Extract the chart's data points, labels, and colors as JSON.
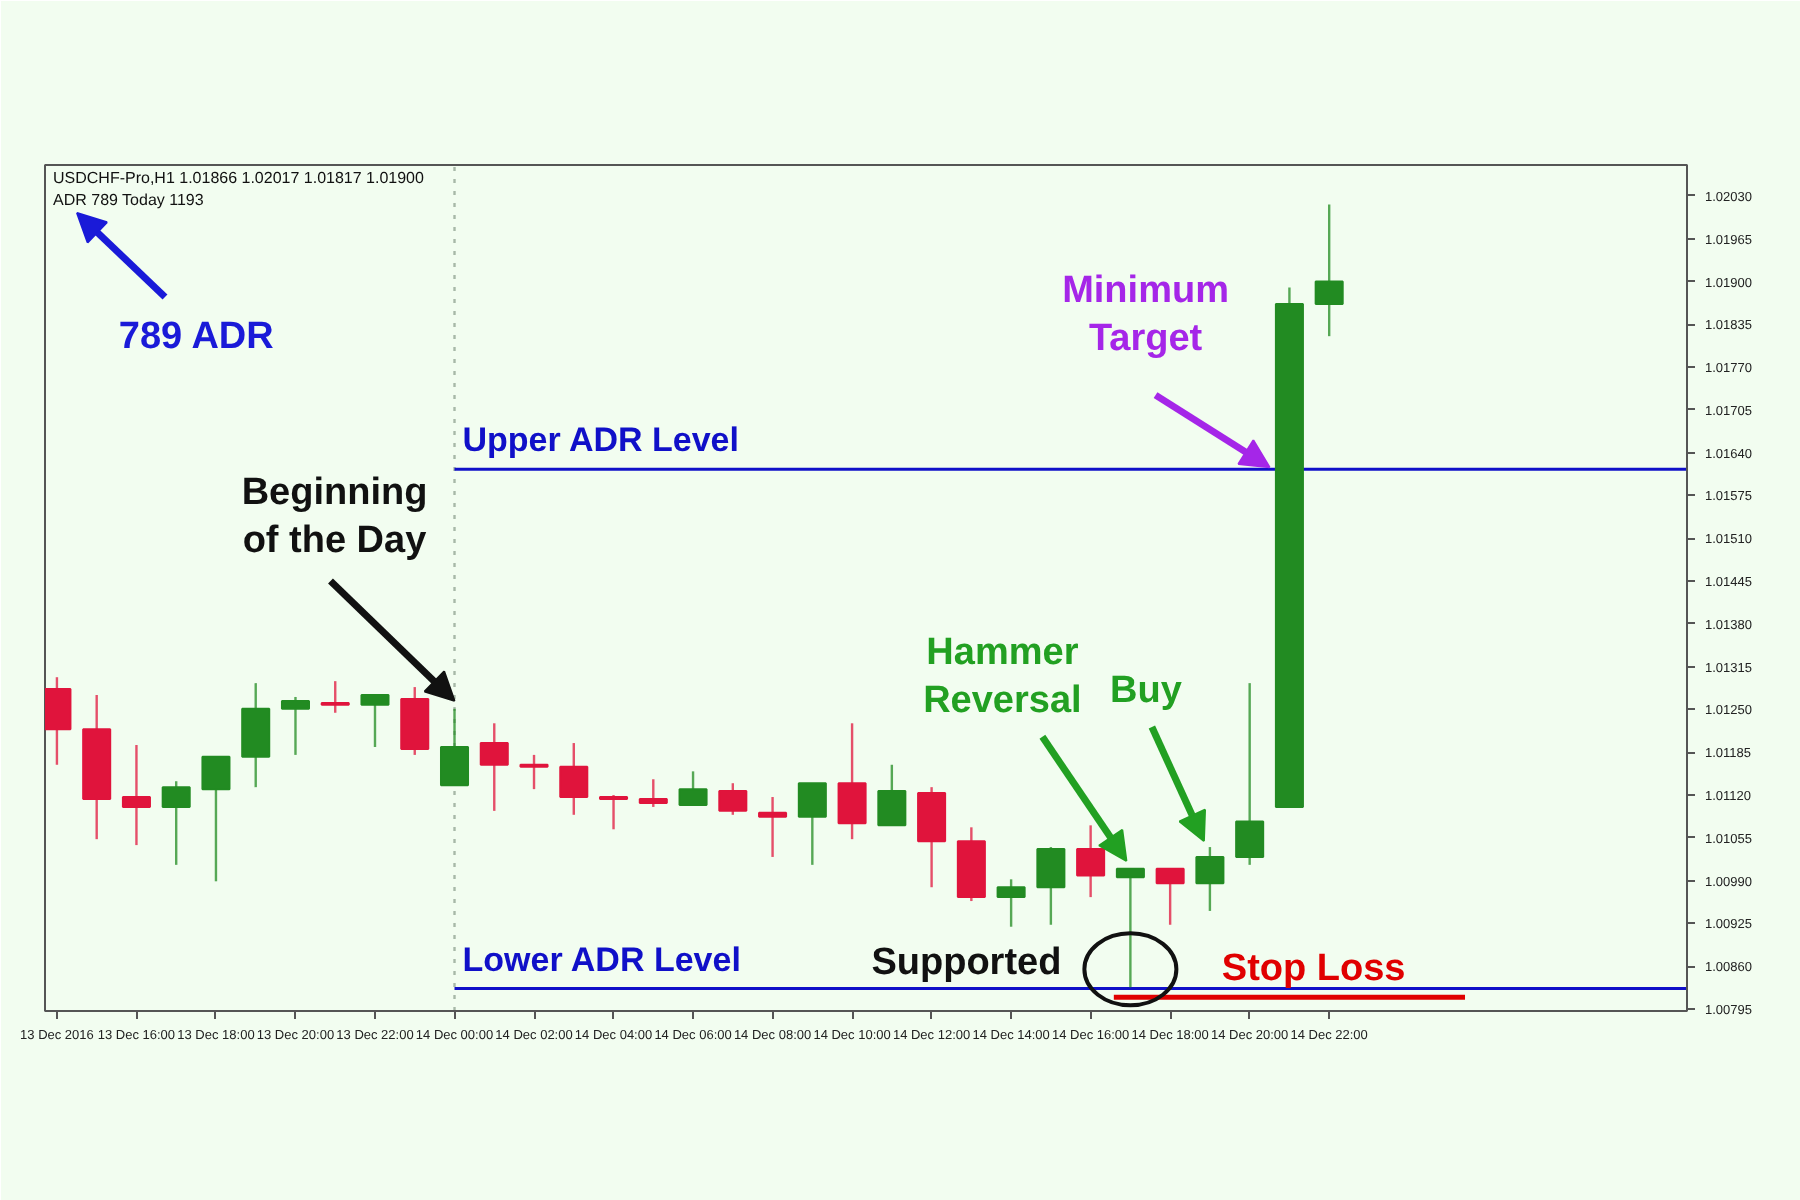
{
  "chart_data": {
    "type": "candlestick",
    "title": "USDCHF-Pro,H1  1.01866 1.02017 1.01817 1.01900",
    "subtitle": "ADR 789  Today 1193",
    "x": [
      "2016-12-13T14:00",
      "2016-12-13T15:00",
      "2016-12-13T16:00",
      "2016-12-13T17:00",
      "2016-12-13T18:00",
      "2016-12-13T19:00",
      "2016-12-13T20:00",
      "2016-12-13T21:00",
      "2016-12-13T22:00",
      "2016-12-13T23:00",
      "2016-12-14T00:00",
      "2016-12-14T01:00",
      "2016-12-14T02:00",
      "2016-12-14T03:00",
      "2016-12-14T04:00",
      "2016-12-14T05:00",
      "2016-12-14T06:00",
      "2016-12-14T07:00",
      "2016-12-14T08:00",
      "2016-12-14T09:00",
      "2016-12-14T10:00",
      "2016-12-14T11:00",
      "2016-12-14T12:00",
      "2016-12-14T13:00",
      "2016-12-14T14:00",
      "2016-12-14T15:00",
      "2016-12-14T16:00",
      "2016-12-14T17:00",
      "2016-12-14T18:00",
      "2016-12-14T19:00",
      "2016-12-14T20:00",
      "2016-12-14T21:00",
      "2016-12-14T22:00"
    ],
    "ohlc": [
      [
        1.01281,
        1.01299,
        1.01166,
        1.0122
      ],
      [
        1.0122,
        1.01272,
        1.01053,
        1.01114
      ],
      [
        1.01117,
        1.01196,
        1.01044,
        1.01102
      ],
      [
        1.01102,
        1.01141,
        1.01014,
        1.01132
      ],
      [
        1.01129,
        1.01178,
        1.00989,
        1.01178
      ],
      [
        1.01178,
        1.0129,
        1.01132,
        1.01251
      ],
      [
        1.01251,
        1.01269,
        1.01181,
        1.01263
      ],
      [
        1.0126,
        1.01293,
        1.01245,
        1.01257
      ],
      [
        1.01257,
        1.01272,
        1.01193,
        1.01272
      ],
      [
        1.01266,
        1.01284,
        1.01181,
        1.0119
      ],
      [
        1.01135,
        1.01251,
        1.01135,
        1.01193
      ],
      [
        1.01199,
        1.01229,
        1.01096,
        1.01166
      ],
      [
        1.01166,
        1.01181,
        1.01129,
        1.01163
      ],
      [
        1.01163,
        1.01199,
        1.0109,
        1.01117
      ],
      [
        1.01117,
        1.0112,
        1.01068,
        1.01114
      ],
      [
        1.01114,
        1.01144,
        1.01102,
        1.01108
      ],
      [
        1.01105,
        1.01156,
        1.01105,
        1.01129
      ],
      [
        1.01126,
        1.01138,
        1.0109,
        1.01096
      ],
      [
        1.01093,
        1.01117,
        1.01026,
        1.01087
      ],
      [
        1.01087,
        1.01138,
        1.01014,
        1.01138
      ],
      [
        1.01138,
        1.01229,
        1.01053,
        1.01077
      ],
      [
        1.01074,
        1.01166,
        1.01074,
        1.01126
      ],
      [
        1.01123,
        1.01132,
        1.0098,
        1.0105
      ],
      [
        1.0105,
        1.01071,
        1.00959,
        1.00965
      ],
      [
        1.00965,
        1.00992,
        1.0092,
        1.0098
      ],
      [
        1.0098,
        1.01041,
        1.00923,
        1.01038
      ],
      [
        1.01038,
        1.01074,
        1.00965,
        1.00998
      ],
      [
        1.00995,
        1.01008,
        1.00828,
        1.01008
      ],
      [
        1.01008,
        1.01008,
        1.00923,
        1.00986
      ],
      [
        1.00986,
        1.01041,
        1.00944,
        1.01026
      ],
      [
        1.01026,
        1.0129,
        1.01014,
        1.0108
      ],
      [
        1.01102,
        1.01891,
        1.01102,
        1.01866
      ],
      [
        1.01866,
        1.02017,
        1.01817,
        1.019
      ]
    ],
    "colors": [
      "#e0143c",
      "#e0143c",
      "#e0143c",
      "#228b22",
      "#228b22",
      "#228b22",
      "#228b22",
      "#e0143c",
      "#228b22",
      "#e0143c",
      "#228b22",
      "#e0143c",
      "#e0143c",
      "#e0143c",
      "#e0143c",
      "#e0143c",
      "#228b22",
      "#e0143c",
      "#e0143c",
      "#228b22",
      "#e0143c",
      "#228b22",
      "#e0143c",
      "#e0143c",
      "#228b22",
      "#228b22",
      "#e0143c",
      "#228b22",
      "#e0143c",
      "#228b22",
      "#228b22",
      "#228b22",
      "#228b22"
    ],
    "series": [
      {
        "type": "line",
        "x": [
          "2016-12-14T16:35",
          "2016-12-15T01:25"
        ],
        "values": [
          1.00813,
          1.00813
        ],
        "color": "#e00000"
      }
    ],
    "xlim": [
      "2016-12-13T13:42",
      "2016-12-15T07:00"
    ],
    "xticks": [
      {
        "value": "2016-12-13T14:00",
        "label": "13 Dec 2016"
      },
      {
        "value": "2016-12-13T16:00",
        "label": "13 Dec 16:00"
      },
      {
        "value": "2016-12-13T18:00",
        "label": "13 Dec 18:00"
      },
      {
        "value": "2016-12-13T20:00",
        "label": "13 Dec 20:00"
      },
      {
        "value": "2016-12-13T22:00",
        "label": "13 Dec 22:00"
      },
      {
        "value": "2016-12-14T00:00",
        "label": "14 Dec 00:00"
      },
      {
        "value": "2016-12-14T02:00",
        "label": "14 Dec 02:00"
      },
      {
        "value": "2016-12-14T04:00",
        "label": "14 Dec 04:00"
      },
      {
        "value": "2016-12-14T06:00",
        "label": "14 Dec 06:00"
      },
      {
        "value": "2016-12-14T08:00",
        "label": "14 Dec 08:00"
      },
      {
        "value": "2016-12-14T10:00",
        "label": "14 Dec 10:00"
      },
      {
        "value": "2016-12-14T12:00",
        "label": "14 Dec 12:00"
      },
      {
        "value": "2016-12-14T14:00",
        "label": "14 Dec 14:00"
      },
      {
        "value": "2016-12-14T16:00",
        "label": "14 Dec 16:00"
      },
      {
        "value": "2016-12-14T18:00",
        "label": "14 Dec 18:00"
      },
      {
        "value": "2016-12-14T20:00",
        "label": "14 Dec 20:00"
      },
      {
        "value": "2016-12-14T22:00",
        "label": "14 Dec 22:00"
      }
    ],
    "ylim": [
      1.00792,
      1.02077
    ],
    "yticks": [
      1.00795,
      {
        "value": 1.0086,
        "label": "1.00860"
      },
      1.00925,
      {
        "value": 1.0099,
        "label": "1.00990"
      },
      1.01055,
      {
        "value": 1.0112,
        "label": "1.01120"
      },
      1.01185,
      {
        "value": 1.0125,
        "label": "1.01250"
      },
      1.01315,
      {
        "value": 1.0138,
        "label": "1.01380"
      },
      1.01445,
      {
        "value": 1.0151,
        "label": "1.01510"
      },
      1.01575,
      {
        "value": 1.0164,
        "label": "1.01640"
      },
      1.01705,
      {
        "value": 1.0177,
        "label": "1.01770"
      },
      1.01835,
      {
        "value": 1.019,
        "label": "1.01900"
      },
      1.01965,
      {
        "value": 1.0203,
        "label": "1.02030"
      }
    ],
    "grid": false,
    "ref_lines": [
      {
        "axis": "x",
        "value": "2016-12-14T00:00",
        "color": "#a8b8a8",
        "line_style": "dotted"
      },
      {
        "axis": "y",
        "value": 1.01615,
        "label": "Upper ADR Level",
        "color": "#1010c8"
      },
      {
        "axis": "y",
        "value": 1.00826,
        "label": "Lower ADR Level",
        "color": "#1010c8"
      }
    ],
    "annotations": [
      "789 ADR",
      {
        "text": "Beginning\nof the Day",
        "x": "2016-12-14T00:00",
        "y": 1.01263
      },
      {
        "text": "Minimum\nTarget",
        "x": "2016-12-14T20:30",
        "y": 1.01615
      },
      {
        "text": "Hammer\nReversal",
        "x": "2016-12-14T17:00",
        "y": 1.01008
      },
      {
        "text": "Buy",
        "x": "2016-12-14T19:00",
        "y": 1.01041
      },
      {
        "text": "Supported",
        "x": "2016-12-14T17:00",
        "y": 1.00828
      },
      {
        "text": "Stop Loss",
        "x": "2016-12-14T20:00",
        "y": 1.00813
      }
    ]
  }
}
